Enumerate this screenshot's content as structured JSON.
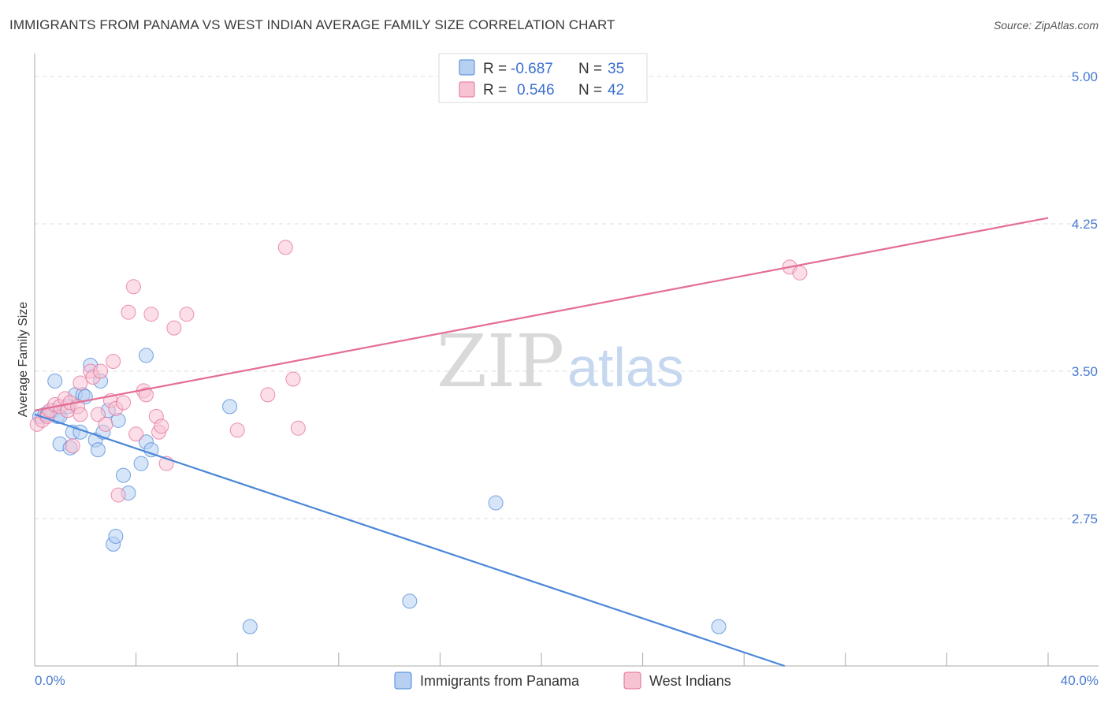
{
  "title": "IMMIGRANTS FROM PANAMA VS WEST INDIAN AVERAGE FAMILY SIZE CORRELATION CHART",
  "source": "Source: ZipAtlas.com",
  "watermark": {
    "zip": "ZIP",
    "atlas": "atlas"
  },
  "colors": {
    "blue": "#4a86d8",
    "blue_fill": "#b7d0f2",
    "pink": "#e46d95",
    "pink_fill": "#f7c3d3",
    "tick": "#4a7bd0"
  },
  "legend": {
    "rows": [
      {
        "r_label": "R =",
        "r_value": "-0.687",
        "n_label": "N =",
        "n_value": "35"
      },
      {
        "r_label": "R =",
        "r_value": "0.546",
        "n_label": "N =",
        "n_value": "42"
      }
    ]
  },
  "chart_data": {
    "type": "scatter",
    "title": "IMMIGRANTS FROM PANAMA VS WEST INDIAN AVERAGE FAMILY SIZE CORRELATION CHART",
    "xlabel": "",
    "ylabel": "Average Family Size",
    "xlim": [
      0,
      40
    ],
    "ylim": [
      2.0,
      5.1
    ],
    "x_tick_labels": [
      "0.0%",
      "40.0%"
    ],
    "y_ticks": [
      2.75,
      3.5,
      4.25,
      5.0
    ],
    "y_tick_labels": [
      "2.75",
      "3.50",
      "4.25",
      "5.00"
    ],
    "grid": true,
    "series": [
      {
        "name": "Immigrants from Panama",
        "color": "#4a86d8",
        "points": [
          [
            0.2,
            3.27
          ],
          [
            0.4,
            3.28
          ],
          [
            0.5,
            3.28
          ],
          [
            0.7,
            3.3
          ],
          [
            0.9,
            3.27
          ],
          [
            1.0,
            3.27
          ],
          [
            0.8,
            3.45
          ],
          [
            1.0,
            3.13
          ],
          [
            1.3,
            3.32
          ],
          [
            1.4,
            3.11
          ],
          [
            1.5,
            3.19
          ],
          [
            1.6,
            3.38
          ],
          [
            1.8,
            3.19
          ],
          [
            1.9,
            3.38
          ],
          [
            2.0,
            3.37
          ],
          [
            2.2,
            3.53
          ],
          [
            2.4,
            3.15
          ],
          [
            2.5,
            3.1
          ],
          [
            2.6,
            3.45
          ],
          [
            2.9,
            3.3
          ],
          [
            3.3,
            3.25
          ],
          [
            3.5,
            2.97
          ],
          [
            3.7,
            2.88
          ],
          [
            3.1,
            2.62
          ],
          [
            3.2,
            2.66
          ],
          [
            4.2,
            3.03
          ],
          [
            4.4,
            3.14
          ],
          [
            4.6,
            3.1
          ],
          [
            4.4,
            3.58
          ],
          [
            7.7,
            3.32
          ],
          [
            8.5,
            2.2
          ],
          [
            14.8,
            2.33
          ],
          [
            18.2,
            2.83
          ],
          [
            27.0,
            2.2
          ],
          [
            2.7,
            3.19
          ]
        ],
        "trend": {
          "x0": 0,
          "y0": 3.28,
          "x1": 29.6,
          "y1": 2.0
        }
      },
      {
        "name": "West Indians",
        "color": "#e46d95",
        "points": [
          [
            0.1,
            3.23
          ],
          [
            0.3,
            3.25
          ],
          [
            0.5,
            3.27
          ],
          [
            0.6,
            3.3
          ],
          [
            0.8,
            3.33
          ],
          [
            1.0,
            3.32
          ],
          [
            1.2,
            3.36
          ],
          [
            1.3,
            3.3
          ],
          [
            1.4,
            3.34
          ],
          [
            1.7,
            3.32
          ],
          [
            1.8,
            3.44
          ],
          [
            1.8,
            3.28
          ],
          [
            1.5,
            3.12
          ],
          [
            2.2,
            3.5
          ],
          [
            2.3,
            3.47
          ],
          [
            2.5,
            3.28
          ],
          [
            2.6,
            3.5
          ],
          [
            2.8,
            3.23
          ],
          [
            3.0,
            3.35
          ],
          [
            3.2,
            3.31
          ],
          [
            3.1,
            3.55
          ],
          [
            3.5,
            3.34
          ],
          [
            3.3,
            2.87
          ],
          [
            3.7,
            3.8
          ],
          [
            3.9,
            3.93
          ],
          [
            4.0,
            3.18
          ],
          [
            4.3,
            3.4
          ],
          [
            4.4,
            3.38
          ],
          [
            4.6,
            3.79
          ],
          [
            4.8,
            3.27
          ],
          [
            4.9,
            3.19
          ],
          [
            5.0,
            3.22
          ],
          [
            5.2,
            3.03
          ],
          [
            5.5,
            3.72
          ],
          [
            6.0,
            3.79
          ],
          [
            8.0,
            3.2
          ],
          [
            9.2,
            3.38
          ],
          [
            9.9,
            4.13
          ],
          [
            10.2,
            3.46
          ],
          [
            10.4,
            3.21
          ],
          [
            29.8,
            4.03
          ],
          [
            30.2,
            4.0
          ]
        ],
        "trend": {
          "x0": 0,
          "y0": 3.3,
          "x1": 40,
          "y1": 4.28
        }
      }
    ]
  }
}
